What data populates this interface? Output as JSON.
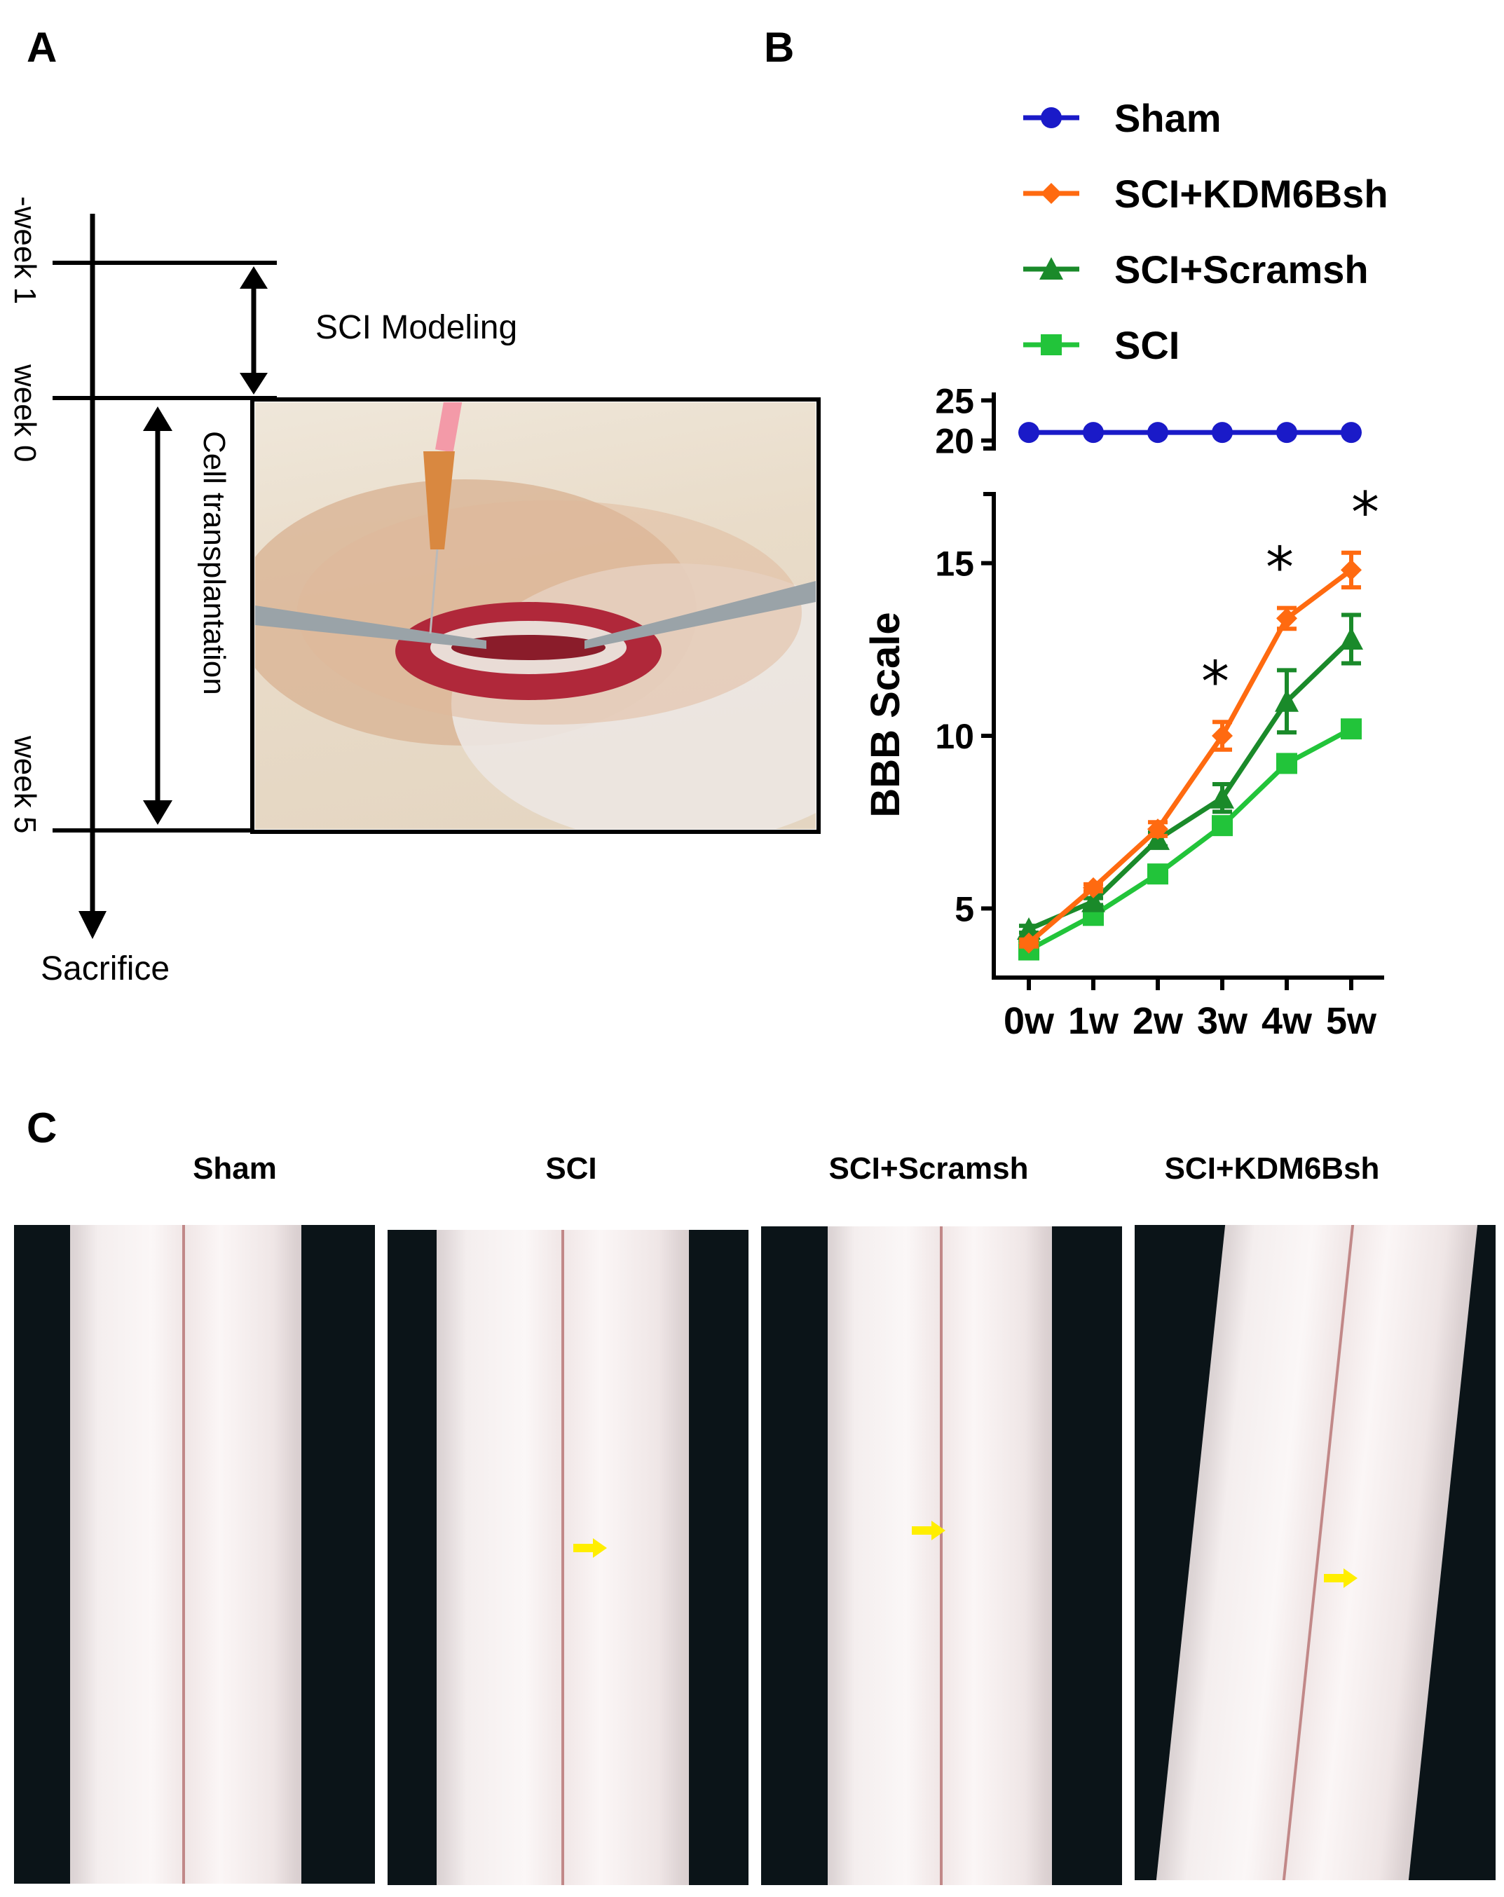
{
  "panels": {
    "a": {
      "letter": "A"
    },
    "b": {
      "letter": "B"
    },
    "c": {
      "letter": "C"
    }
  },
  "timeline": {
    "labels": {
      "minus_week_1": "-week 1",
      "week_0": "week 0",
      "week_5": "week 5",
      "sacrifice": "Sacrifice",
      "sci_modeling": "SCI Modeling",
      "cell_transplantation": "Cell transplantation"
    }
  },
  "chart_data": {
    "type": "line",
    "title": "",
    "xlabel": "",
    "ylabel": "BBB Scale",
    "categories": [
      "0w",
      "1w",
      "2w",
      "3w",
      "4w",
      "5w"
    ],
    "y_ticks_lower": [
      5,
      10,
      15
    ],
    "y_ticks_upper": [
      20,
      25
    ],
    "ylim_lower": [
      3,
      17
    ],
    "ylim_upper": [
      19,
      26
    ],
    "axis_break": true,
    "grid": false,
    "legend_position": "top-right",
    "significance_marks": [
      {
        "category": "3w",
        "label": "*"
      },
      {
        "category": "4w",
        "label": "*"
      },
      {
        "category": "5w",
        "label": "*"
      }
    ],
    "series": [
      {
        "name": "Sham",
        "color": "#1a1ac8",
        "marker": "circle",
        "values": [
          21,
          21,
          21,
          21,
          21,
          21
        ],
        "errors": [
          0,
          0,
          0,
          0,
          0,
          0
        ]
      },
      {
        "name": "SCI+KDM6Bsh",
        "color": "#ff6a10",
        "marker": "diamond",
        "values": [
          4.0,
          5.6,
          7.3,
          10.0,
          13.4,
          14.8
        ],
        "errors": [
          0.1,
          0.1,
          0.2,
          0.4,
          0.3,
          0.5
        ]
      },
      {
        "name": "SCI+Scramsh",
        "color": "#1a8a2a",
        "marker": "triangle",
        "values": [
          4.4,
          5.2,
          7.0,
          8.2,
          11.0,
          12.8
        ],
        "errors": [
          0.1,
          0.1,
          0.2,
          0.4,
          0.9,
          0.7
        ]
      },
      {
        "name": "SCI",
        "color": "#22c43a",
        "marker": "square",
        "values": [
          3.8,
          4.8,
          6.0,
          7.4,
          9.2,
          10.2
        ],
        "errors": [
          0.1,
          0.1,
          0.1,
          0.1,
          0.1,
          0.1
        ]
      }
    ]
  },
  "photos": {
    "titles": [
      "Sham",
      "SCI",
      "SCI+Scramsh",
      "SCI+KDM6Bsh"
    ],
    "arrow_color": "#ffee00"
  }
}
